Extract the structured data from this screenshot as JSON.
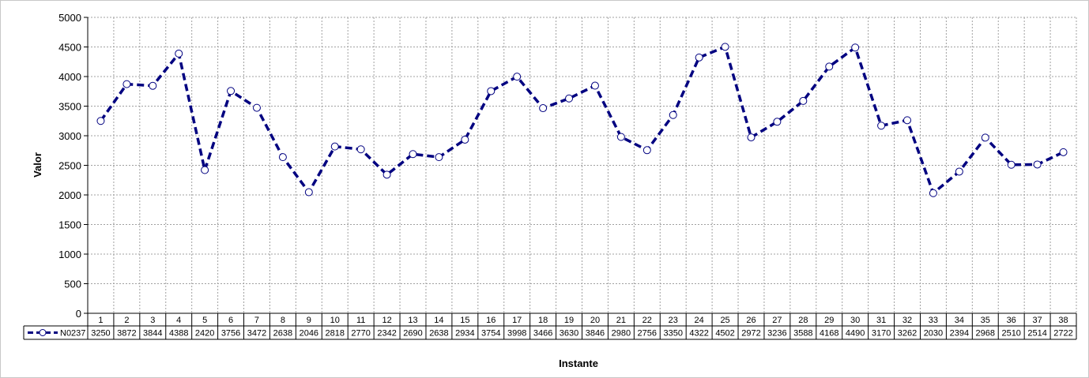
{
  "chart_data": {
    "type": "line",
    "title": "",
    "xlabel": "Instante",
    "ylabel": "Valor",
    "ylim": [
      0,
      5000
    ],
    "yticks": [
      0,
      500,
      1000,
      1500,
      2000,
      2500,
      3000,
      3500,
      4000,
      4500,
      5000
    ],
    "categories": [
      "1",
      "2",
      "3",
      "4",
      "5",
      "6",
      "7",
      "8",
      "9",
      "10",
      "11",
      "12",
      "13",
      "14",
      "15",
      "16",
      "17",
      "18",
      "19",
      "20",
      "21",
      "22",
      "23",
      "24",
      "25",
      "26",
      "27",
      "28",
      "29",
      "30",
      "31",
      "32",
      "33",
      "34",
      "35",
      "36",
      "37",
      "38"
    ],
    "grid": true,
    "legend": "data-table",
    "series": [
      {
        "name": "N0237",
        "color": "#000080",
        "line_style": "dashed",
        "marker": "circle-open",
        "values": [
          3250,
          3872,
          3844,
          4388,
          2420,
          3756,
          3472,
          2638,
          2046,
          2818,
          2770,
          2342,
          2690,
          2638,
          2934,
          3754,
          3998,
          3466,
          3630,
          3846,
          2980,
          2756,
          3350,
          4322,
          4502,
          2972,
          3236,
          3588,
          4168,
          4490,
          3170,
          3262,
          2030,
          2394,
          2968,
          2510,
          2514,
          2722
        ]
      }
    ]
  }
}
